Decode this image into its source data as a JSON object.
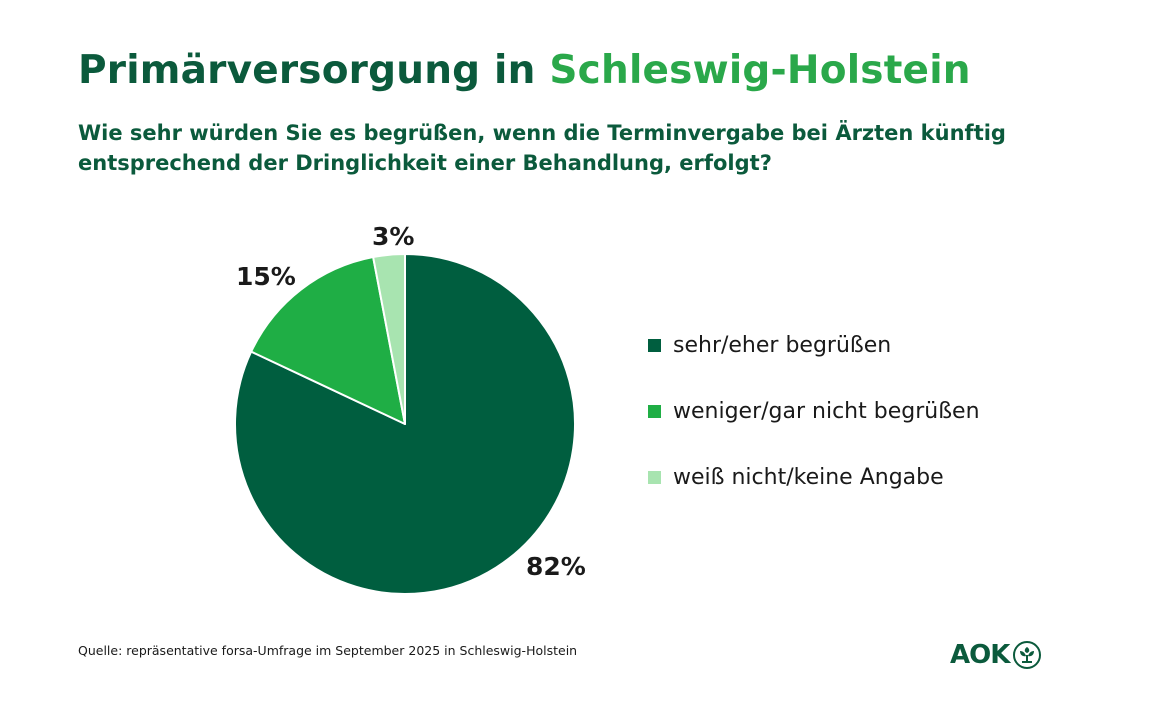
{
  "title_part1": "Primärversorgung in",
  "title_part2": "Schleswig-Holstein",
  "subtitle": "Wie sehr würden Sie es begrüßen, wenn die Terminvergabe bei Ärzten künftig entsprechend der Dringlichkeit einer Behandlung, erfolgt?",
  "source": "Quelle: repräsentative forsa-Umfrage im September 2025 in Schleswig-Holstein",
  "logo": {
    "text": "AOK",
    "icon": "aok-tree-icon",
    "color": "#0b5a3c"
  },
  "colors": {
    "title_dark": "#0b5a3c",
    "title_accent": "#2aa84a"
  },
  "chart_data": {
    "type": "pie",
    "title": "Primärversorgung in Schleswig-Holstein",
    "start_angle": "12 o'clock",
    "direction": "clockwise",
    "legend_placement": "right",
    "slices": [
      {
        "label": "sehr/eher begrüßen",
        "value": 82,
        "value_label": "82%",
        "color": "#005e3f"
      },
      {
        "label": "weniger/gar nicht begrüßen",
        "value": 15,
        "value_label": "15%",
        "color": "#1fae45"
      },
      {
        "label": "weiß nicht/keine Angabe",
        "value": 3,
        "value_label": "3%",
        "color": "#a8e4b0"
      }
    ]
  }
}
